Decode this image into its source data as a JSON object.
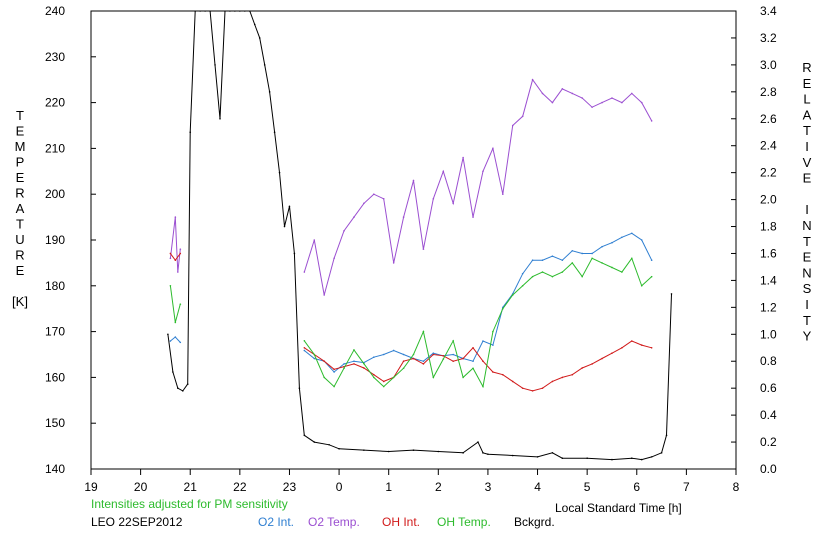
{
  "chart_data": {
    "type": "line",
    "title": "",
    "xlabel": "Local Standard Time [h]",
    "ylabel_left_letters": [
      "T",
      "E",
      "M",
      "P",
      "E",
      "R",
      "A",
      "T",
      "U",
      "R",
      "E",
      "",
      "[K]"
    ],
    "ylabel_right_letters": [
      "R",
      "E",
      "L",
      "A",
      "T",
      "I",
      "V",
      "E",
      "",
      "I",
      "N",
      "T",
      "E",
      "N",
      "S",
      "I",
      "T",
      "Y"
    ],
    "xlim": [
      19,
      32
    ],
    "x_tick_labels": [
      "19",
      "20",
      "21",
      "22",
      "23",
      "0",
      "1",
      "2",
      "3",
      "4",
      "5",
      "6",
      "7",
      "8"
    ],
    "ylim_left": [
      140,
      240
    ],
    "y_left_ticks": [
      140,
      150,
      160,
      170,
      180,
      190,
      200,
      210,
      220,
      230,
      240
    ],
    "ylim_right": [
      0.0,
      3.4
    ],
    "y_right_ticks": [
      "0.0",
      "0.2",
      "0.4",
      "0.6",
      "0.8",
      "1.0",
      "1.2",
      "1.4",
      "1.6",
      "1.8",
      "2.0",
      "2.2",
      "2.4",
      "2.6",
      "2.8",
      "3.0",
      "3.2",
      "3.4"
    ],
    "footer": {
      "note": "Intensities adjusted for PM sensitivity",
      "site_date": "LEO 22SEP2012",
      "legend": [
        "O2 Int.",
        "O2 Temp.",
        "OH Int.",
        "OH Temp.",
        "Bckgrd."
      ]
    },
    "series": [
      {
        "name": "Bckgrd.",
        "axis": "right",
        "color": "#000000",
        "x": [
          20.55,
          20.65,
          20.75,
          20.85,
          20.95,
          21.0,
          21.1,
          21.2,
          21.3,
          21.4,
          21.5,
          21.6,
          21.7,
          21.8,
          21.9,
          22.0,
          22.1,
          22.2,
          22.3,
          22.4,
          22.5,
          22.6,
          22.7,
          22.8,
          22.9,
          23.0,
          23.1,
          23.2,
          23.3,
          23.5,
          23.8,
          24.0,
          24.5,
          25.0,
          25.5,
          26.0,
          26.5,
          26.8,
          26.9,
          27.0,
          27.5,
          28.0,
          28.3,
          28.5,
          29.0,
          29.5,
          29.9,
          30.1,
          30.3,
          30.5,
          30.6,
          30.7
        ],
        "values": [
          1.0,
          0.72,
          0.6,
          0.58,
          0.63,
          2.5,
          3.4,
          3.4,
          3.4,
          3.4,
          3.0,
          2.6,
          3.4,
          3.4,
          3.4,
          3.4,
          3.4,
          3.4,
          3.3,
          3.2,
          3.0,
          2.8,
          2.5,
          2.2,
          1.8,
          1.95,
          1.6,
          0.6,
          0.25,
          0.2,
          0.18,
          0.15,
          0.14,
          0.13,
          0.14,
          0.13,
          0.12,
          0.2,
          0.12,
          0.11,
          0.1,
          0.09,
          0.12,
          0.08,
          0.08,
          0.07,
          0.08,
          0.07,
          0.09,
          0.12,
          0.25,
          1.3
        ]
      },
      {
        "name": "O2 Temp.",
        "axis": "left",
        "color": "#9b4fd1",
        "x": [
          20.6,
          20.7,
          20.75,
          20.8,
          23.3,
          23.5,
          23.7,
          23.9,
          24.1,
          24.3,
          24.5,
          24.7,
          24.9,
          25.1,
          25.3,
          25.5,
          25.7,
          25.9,
          26.1,
          26.3,
          26.5,
          26.7,
          26.9,
          27.1,
          27.3,
          27.5,
          27.7,
          27.9,
          28.1,
          28.3,
          28.5,
          28.7,
          28.9,
          29.1,
          29.3,
          29.5,
          29.7,
          29.9,
          30.1,
          30.3
        ],
        "values": [
          186,
          195,
          183,
          188,
          183,
          190,
          178,
          186,
          192,
          195,
          198,
          200,
          199,
          185,
          195,
          203,
          188,
          199,
          205,
          198,
          208,
          195,
          205,
          210,
          200,
          215,
          217,
          225,
          222,
          220,
          223,
          222,
          221,
          219,
          220,
          221,
          220,
          222,
          220,
          216
        ]
      },
      {
        "name": "O2 Int.",
        "axis": "right",
        "color": "#2f7fd1",
        "x": [
          20.6,
          20.7,
          20.8,
          23.3,
          23.5,
          23.7,
          23.9,
          24.1,
          24.3,
          24.5,
          24.7,
          24.9,
          25.1,
          25.3,
          25.5,
          25.7,
          25.9,
          26.1,
          26.3,
          26.5,
          26.7,
          26.9,
          27.1,
          27.3,
          27.5,
          27.7,
          27.9,
          28.1,
          28.3,
          28.5,
          28.7,
          28.9,
          29.1,
          29.3,
          29.5,
          29.7,
          29.9,
          30.1,
          30.3
        ],
        "values": [
          0.95,
          0.98,
          0.94,
          0.88,
          0.82,
          0.8,
          0.72,
          0.78,
          0.8,
          0.79,
          0.83,
          0.85,
          0.88,
          0.85,
          0.82,
          0.8,
          0.86,
          0.84,
          0.85,
          0.82,
          0.8,
          0.95,
          0.92,
          1.2,
          1.3,
          1.45,
          1.55,
          1.55,
          1.58,
          1.55,
          1.62,
          1.6,
          1.6,
          1.65,
          1.68,
          1.72,
          1.75,
          1.7,
          1.55
        ]
      },
      {
        "name": "OH Int.",
        "axis": "right",
        "color": "#d11a1a",
        "x": [
          20.6,
          20.7,
          20.8,
          23.3,
          23.5,
          23.7,
          23.9,
          24.1,
          24.3,
          24.5,
          24.7,
          24.9,
          25.1,
          25.3,
          25.5,
          25.7,
          25.9,
          26.1,
          26.3,
          26.5,
          26.7,
          26.9,
          27.1,
          27.3,
          27.5,
          27.7,
          27.9,
          28.1,
          28.3,
          28.5,
          28.7,
          28.9,
          29.1,
          29.3,
          29.5,
          29.7,
          29.9,
          30.1,
          30.3
        ],
        "values": [
          1.6,
          1.55,
          1.6,
          0.9,
          0.85,
          0.8,
          0.74,
          0.76,
          0.78,
          0.75,
          0.7,
          0.65,
          0.68,
          0.8,
          0.82,
          0.78,
          0.85,
          0.84,
          0.8,
          0.82,
          0.9,
          0.8,
          0.72,
          0.7,
          0.65,
          0.6,
          0.58,
          0.6,
          0.65,
          0.68,
          0.7,
          0.75,
          0.78,
          0.82,
          0.86,
          0.9,
          0.95,
          0.92,
          0.9
        ]
      },
      {
        "name": "OH Temp.",
        "axis": "left",
        "color": "#2dbb2d",
        "x": [
          20.6,
          20.7,
          20.8,
          23.3,
          23.5,
          23.7,
          23.9,
          24.1,
          24.3,
          24.5,
          24.7,
          24.9,
          25.1,
          25.3,
          25.5,
          25.7,
          25.9,
          26.1,
          26.3,
          26.5,
          26.7,
          26.9,
          27.1,
          27.3,
          27.5,
          27.7,
          27.9,
          28.1,
          28.3,
          28.5,
          28.7,
          28.9,
          29.1,
          29.3,
          29.5,
          29.7,
          29.9,
          30.1,
          30.3
        ],
        "values": [
          180,
          172,
          176,
          168,
          165,
          160,
          158,
          162,
          166,
          163,
          160,
          158,
          160,
          162,
          165,
          170,
          160,
          164,
          168,
          160,
          162,
          158,
          170,
          175,
          178,
          180,
          182,
          183,
          182,
          183,
          185,
          182,
          186,
          185,
          184,
          183,
          186,
          180,
          182
        ]
      }
    ]
  }
}
